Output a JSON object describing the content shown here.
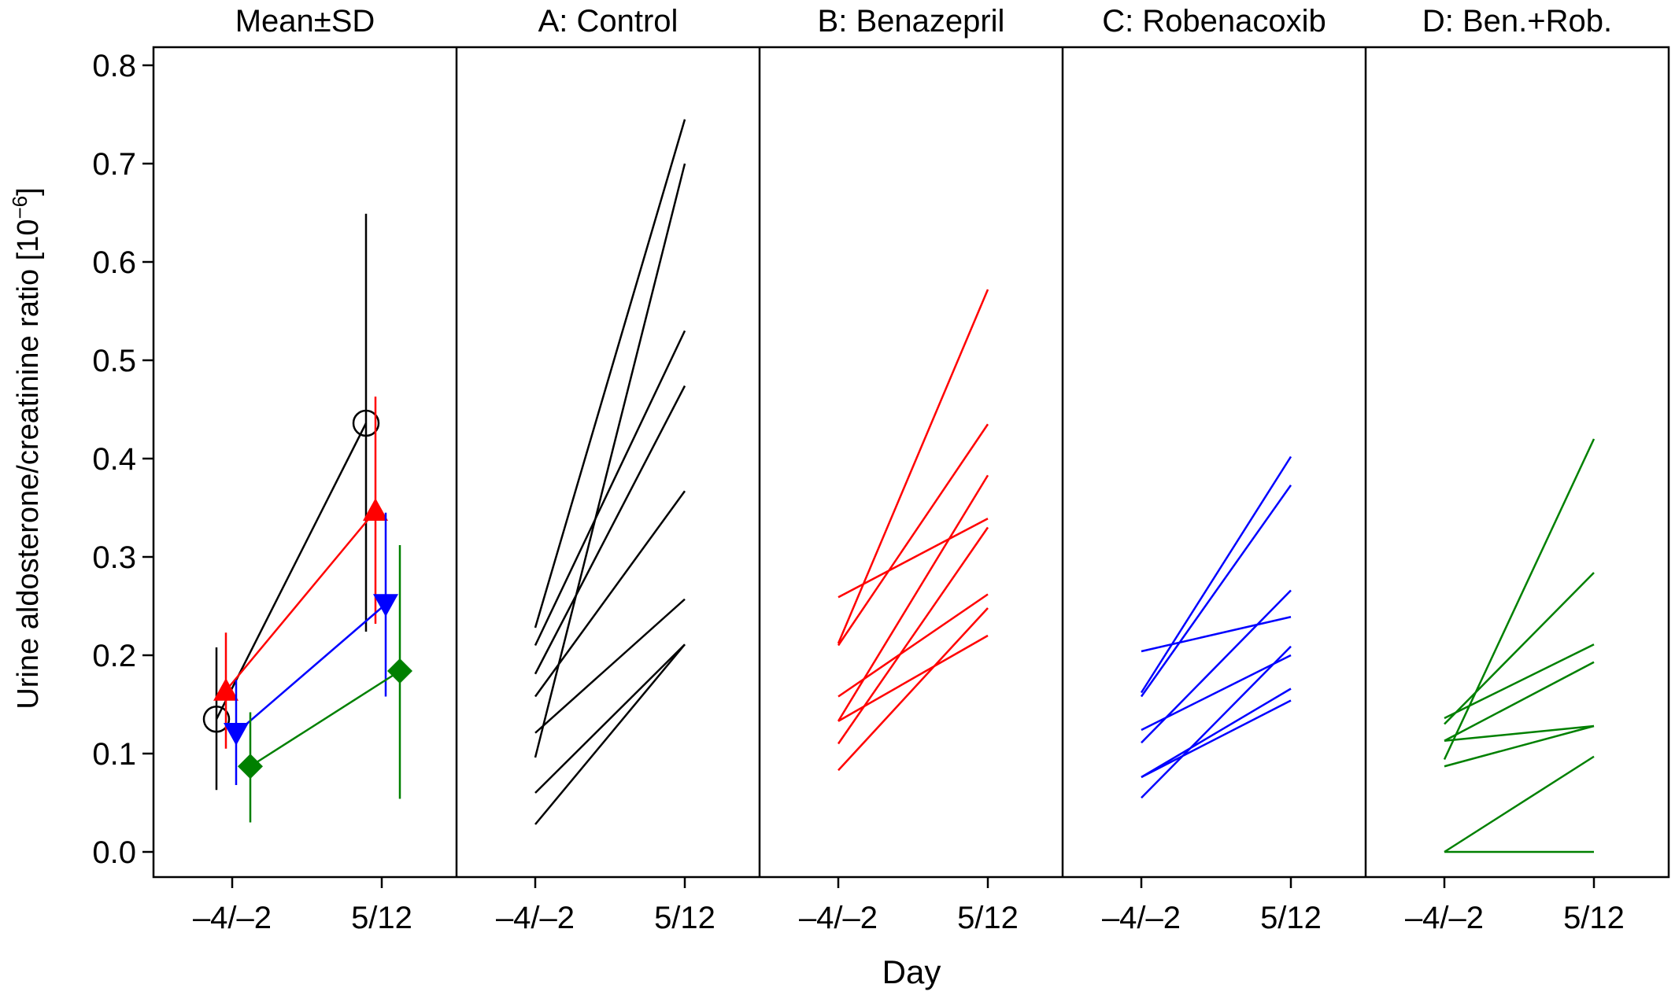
{
  "chart_data": {
    "type": "line",
    "ylabel_main": "Urine aldosterone/creatinine ratio [10",
    "ylabel_exp": "−6",
    "ylabel_close": "]",
    "xlabel": "Day",
    "ylim": [
      0.0,
      0.8
    ],
    "yticks": [
      "0.0",
      "0.1",
      "0.2",
      "0.3",
      "0.4",
      "0.5",
      "0.6",
      "0.7",
      "0.8"
    ],
    "xticks": [
      "–4/–2",
      "5/12"
    ],
    "panels": [
      {
        "title": "Mean±SD",
        "kind": "mean_sd",
        "series": [
          {
            "group": "A",
            "color": "#000000",
            "marker": "circle-open",
            "mean": [
              0.135,
              0.436
            ],
            "lower": [
              0.063,
              0.224
            ],
            "upper": [
              0.208,
              0.649
            ]
          },
          {
            "group": "B",
            "color": "#ff0000",
            "marker": "triangle-up",
            "mean": [
              0.164,
              0.347
            ],
            "lower": [
              0.105,
              0.232
            ],
            "upper": [
              0.223,
              0.463
            ]
          },
          {
            "group": "C",
            "color": "#0000ff",
            "marker": "triangle-down",
            "mean": [
              0.121,
              0.252
            ],
            "lower": [
              0.068,
              0.158
            ],
            "upper": [
              0.175,
              0.345
            ]
          },
          {
            "group": "D",
            "color": "#008000",
            "marker": "diamond",
            "mean": [
              0.087,
              0.184
            ],
            "lower": [
              0.03,
              0.054
            ],
            "upper": [
              0.142,
              0.312
            ]
          }
        ]
      },
      {
        "title": "A: Control",
        "kind": "individual",
        "color": "#000000",
        "lines": [
          [
            0.228,
            0.745
          ],
          [
            0.096,
            0.7
          ],
          [
            0.21,
            0.53
          ],
          [
            0.181,
            0.474
          ],
          [
            0.158,
            0.367
          ],
          [
            0.121,
            0.257
          ],
          [
            0.06,
            0.211
          ],
          [
            0.028,
            0.211
          ]
        ]
      },
      {
        "title": "B: Benazepril",
        "kind": "individual",
        "color": "#ff0000",
        "lines": [
          [
            0.212,
            0.572
          ],
          [
            0.21,
            0.435
          ],
          [
            0.133,
            0.383
          ],
          [
            0.259,
            0.339
          ],
          [
            0.11,
            0.33
          ],
          [
            0.158,
            0.262
          ],
          [
            0.083,
            0.248
          ],
          [
            0.133,
            0.22
          ]
        ]
      },
      {
        "title": "C: Robenacoxib",
        "kind": "individual",
        "color": "#0000ff",
        "lines": [
          [
            0.162,
            0.402
          ],
          [
            0.158,
            0.373
          ],
          [
            0.111,
            0.266
          ],
          [
            0.204,
            0.239
          ],
          [
            0.055,
            0.209
          ],
          [
            0.124,
            0.2
          ],
          [
            0.076,
            0.166
          ],
          [
            0.076,
            0.154
          ]
        ]
      },
      {
        "title": "D: Ben.+Rob.",
        "kind": "individual",
        "color": "#008000",
        "lines": [
          [
            0.094,
            0.42
          ],
          [
            0.0,
            0.097
          ],
          [
            0.0,
            0.0
          ],
          [
            0.13,
            0.284
          ],
          [
            0.136,
            0.211
          ],
          [
            0.113,
            0.193
          ],
          [
            0.113,
            0.128
          ],
          [
            0.087,
            0.128
          ]
        ]
      }
    ]
  }
}
